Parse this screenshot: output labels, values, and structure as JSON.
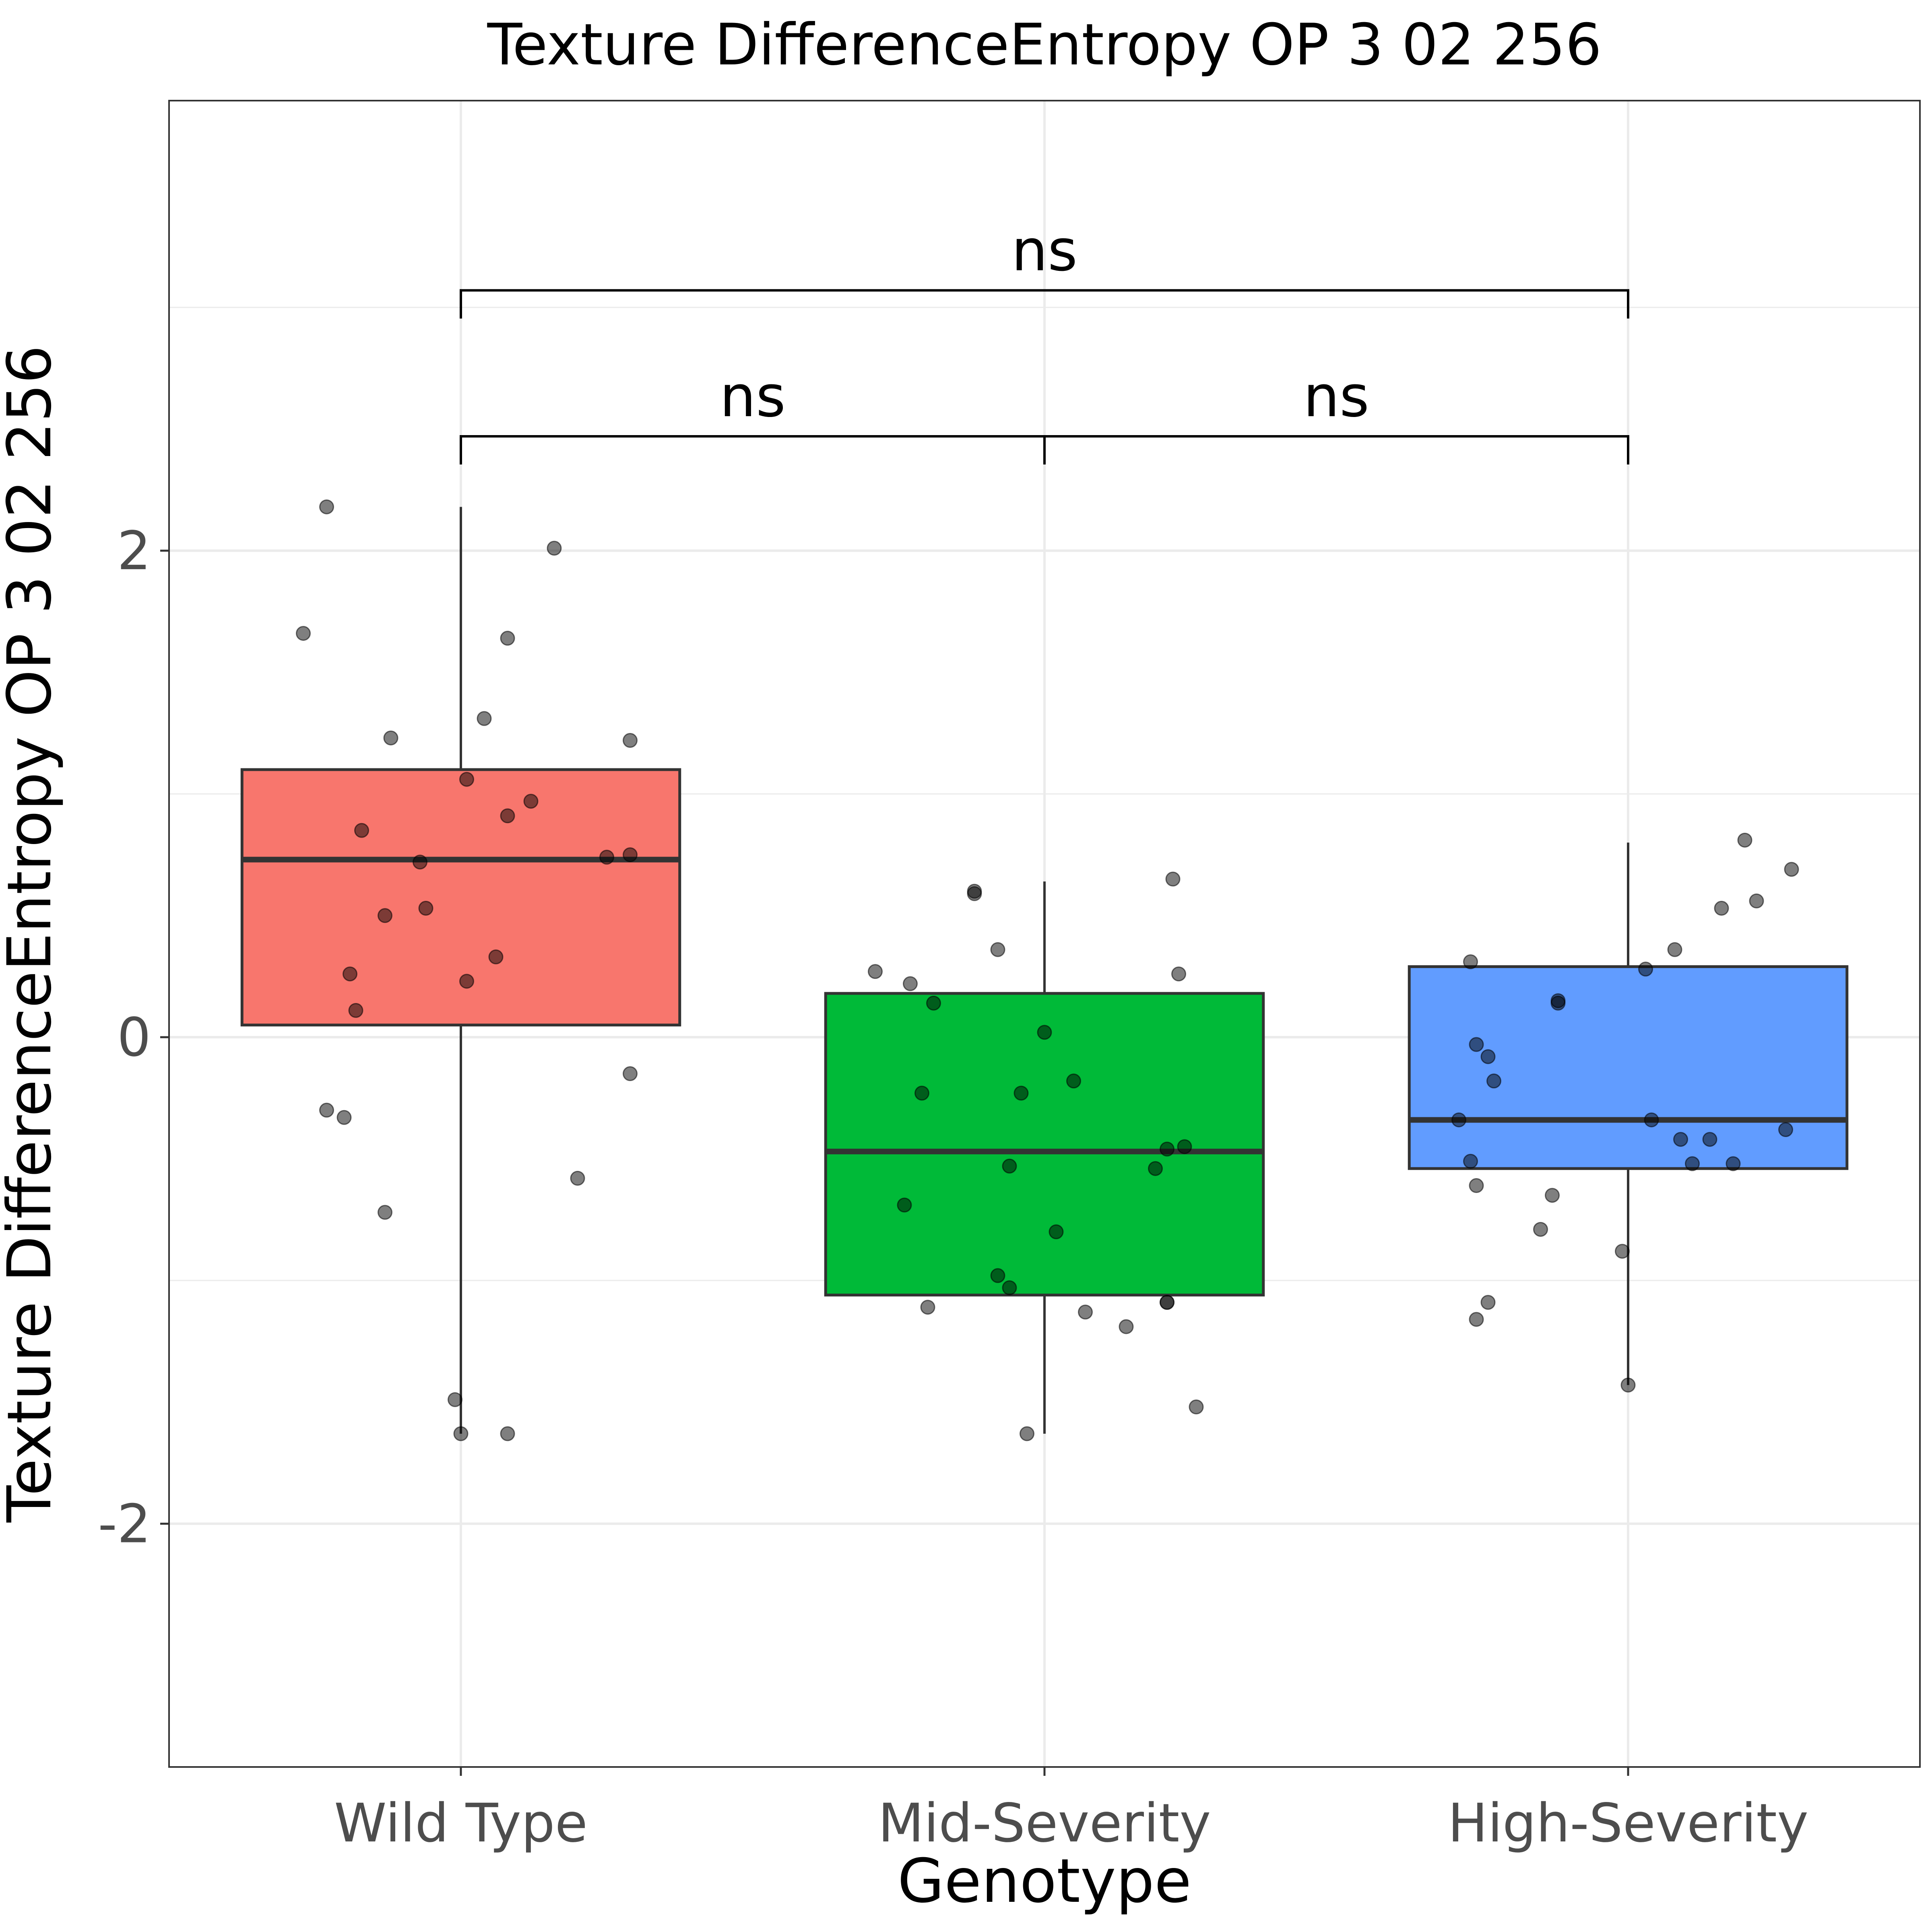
{
  "chart_data": {
    "type": "boxplot",
    "title": "Texture DifferenceEntropy OP 3 02 256",
    "xlabel": "Genotype",
    "ylabel": "Texture DifferenceEntropy OP 3 02 256",
    "ylim": [
      -3.0,
      3.85
    ],
    "yticks": [
      -2,
      0,
      2
    ],
    "grid": true,
    "legend": "none",
    "categories": [
      "Wild Type",
      "Mid-Severity",
      "High-Severity"
    ],
    "colors": [
      "#F8766D",
      "#00BA38",
      "#619CFF"
    ],
    "boxes": [
      {
        "category": "Wild Type",
        "q1": 0.05,
        "median": 0.73,
        "q3": 1.1,
        "whisker_low": -1.63,
        "whisker_high": 2.18
      },
      {
        "category": "Mid-Severity",
        "q1": -1.06,
        "median": -0.47,
        "q3": 0.18,
        "whisker_low": -1.63,
        "whisker_high": 0.64
      },
      {
        "category": "High-Severity",
        "q1": -0.54,
        "median": -0.34,
        "q3": 0.29,
        "whisker_low": -1.43,
        "whisker_high": 0.8
      }
    ],
    "points": [
      {
        "category": "Wild Type",
        "jitter": [
          -0.23,
          0.16,
          -0.27,
          0.08,
          -0.12,
          0.04,
          0.29,
          0.01,
          0.12,
          0.08,
          -0.17,
          0.25,
          0.29,
          -0.07,
          -0.13,
          -0.06,
          0.06,
          -0.19,
          0.01,
          -0.18,
          0.29,
          -0.23,
          -0.2,
          0.2,
          -0.13,
          -0.01,
          0.0,
          0.08
        ],
        "y": [
          2.18,
          2.01,
          1.66,
          1.64,
          1.23,
          1.31,
          1.22,
          1.06,
          0.97,
          0.91,
          0.85,
          0.74,
          0.75,
          0.72,
          0.5,
          0.53,
          0.33,
          0.26,
          0.23,
          0.11,
          -0.15,
          -0.3,
          -0.33,
          -0.58,
          -0.72,
          -1.49,
          -1.63,
          -1.63
        ]
      },
      {
        "category": "Mid-Severity",
        "jitter": [
          -0.12,
          -0.12,
          0.22,
          -0.08,
          -0.29,
          -0.23,
          0.23,
          -0.19,
          0.0,
          -0.21,
          -0.04,
          0.05,
          0.24,
          0.21,
          0.19,
          -0.06,
          -0.24,
          0.02,
          -0.08,
          -0.06,
          -0.2,
          0.21,
          0.21,
          0.07,
          0.14,
          0.26,
          -0.03
        ],
        "y": [
          0.6,
          0.59,
          0.65,
          0.36,
          0.27,
          0.22,
          0.26,
          0.14,
          0.02,
          -0.23,
          -0.23,
          -0.18,
          -0.45,
          -0.46,
          -0.54,
          -0.53,
          -0.69,
          -0.8,
          -0.98,
          -1.03,
          -1.11,
          -1.09,
          -1.09,
          -1.13,
          -1.19,
          -1.52,
          -1.63
        ]
      },
      {
        "category": "High-Severity",
        "jitter": [
          0.2,
          0.28,
          0.22,
          0.16,
          0.08,
          -0.27,
          0.03,
          -0.12,
          -0.12,
          -0.26,
          -0.23,
          -0.24,
          -0.29,
          0.04,
          0.09,
          0.27,
          0.14,
          0.11,
          -0.27,
          0.18,
          -0.26,
          -0.13,
          -0.15,
          -0.01,
          -0.24,
          -0.26,
          0.0
        ],
        "y": [
          0.81,
          0.69,
          0.56,
          0.53,
          0.36,
          0.31,
          0.28,
          0.15,
          0.14,
          -0.03,
          -0.18,
          -0.08,
          -0.34,
          -0.34,
          -0.42,
          -0.38,
          -0.42,
          -0.52,
          -0.51,
          -0.52,
          -0.61,
          -0.65,
          -0.79,
          -0.88,
          -1.09,
          -1.16,
          -1.43
        ]
      }
    ],
    "comparisons": [
      {
        "from": "Wild Type",
        "to": "Mid-Severity",
        "y": 2.47,
        "label": "ns"
      },
      {
        "from": "Mid-Severity",
        "to": "High-Severity",
        "y": 2.47,
        "label": "ns"
      },
      {
        "from": "Wild Type",
        "to": "High-Severity",
        "y": 3.07,
        "label": "ns"
      }
    ]
  }
}
